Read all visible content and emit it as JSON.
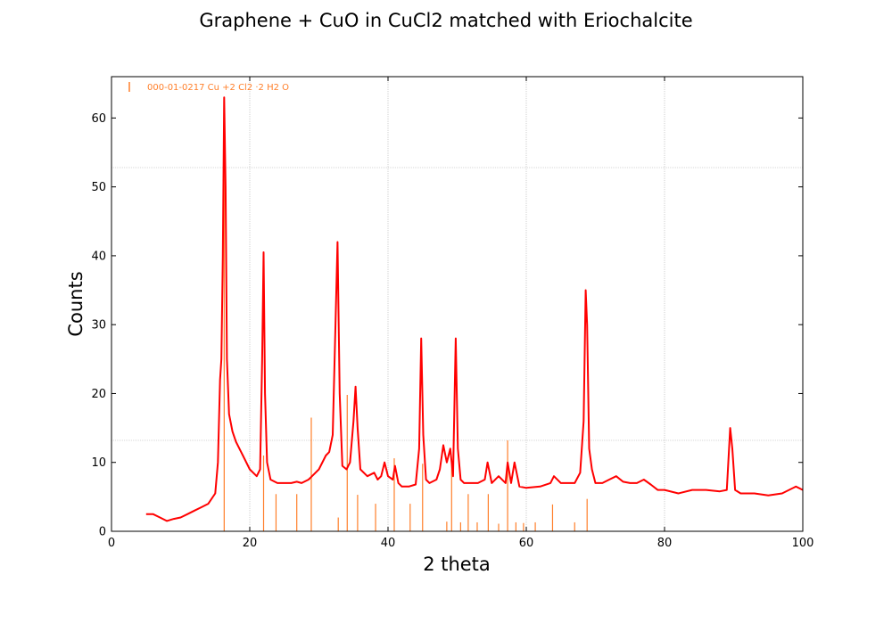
{
  "chart_data": {
    "type": "line",
    "title": "Graphene + CuO in CuCl2 matched with Eriochalcite",
    "xlabel": "2 theta",
    "ylabel": "Counts",
    "xlim": [
      0,
      100
    ],
    "ylim": [
      0,
      66
    ],
    "x_ticks": [
      0,
      20,
      40,
      60,
      80,
      100
    ],
    "y_ticks": [
      0,
      10,
      20,
      30,
      40,
      50,
      60
    ],
    "grid": true,
    "legend_position": "top-left",
    "measured_color": "#ff0000",
    "reference_color": "#ff7f2a",
    "reference_series": {
      "name": "000-01-0217 Cu +2 Cl2 ·2 H2 O",
      "x": [
        16.3,
        22.0,
        23.8,
        26.8,
        28.9,
        32.8,
        34.1,
        35.6,
        38.2,
        40.9,
        43.2,
        45.0,
        48.5,
        49.2,
        50.5,
        51.6,
        52.9,
        54.5,
        56.0,
        57.3,
        58.5,
        59.6,
        61.3,
        63.8,
        67.0,
        68.8
      ],
      "y": [
        63.0,
        11.0,
        5.4,
        5.4,
        16.5,
        2.0,
        19.8,
        5.3,
        4.0,
        10.6,
        4.0,
        9.8,
        1.4,
        9.8,
        1.3,
        5.4,
        1.3,
        5.4,
        1.1,
        13.2,
        1.3,
        1.2,
        1.3,
        3.9,
        1.3,
        4.7
      ]
    },
    "measured_series": {
      "x": [
        5.0,
        6.0,
        7.0,
        8.0,
        9.0,
        10.0,
        11.0,
        12.0,
        13.0,
        14.0,
        15.0,
        15.4,
        15.7,
        15.9,
        16.1,
        16.3,
        16.5,
        16.7,
        17.0,
        17.5,
        18.0,
        19.0,
        20.0,
        21.0,
        21.5,
        21.8,
        22.0,
        22.2,
        22.5,
        23.0,
        24.0,
        25.0,
        26.0,
        26.8,
        27.5,
        28.5,
        29.0,
        30.0,
        31.0,
        31.5,
        32.0,
        32.4,
        32.7,
        33.0,
        33.4,
        34.0,
        34.5,
        35.0,
        35.3,
        35.6,
        36.0,
        37.0,
        38.0,
        38.5,
        39.0,
        39.5,
        40.0,
        40.7,
        41.0,
        41.5,
        42.0,
        43.0,
        44.0,
        44.5,
        44.8,
        45.1,
        45.5,
        46.0,
        47.0,
        47.5,
        48.0,
        48.5,
        49.0,
        49.4,
        49.8,
        50.1,
        50.5,
        51.0,
        52.0,
        53.0,
        54.0,
        54.4,
        55.0,
        56.0,
        57.0,
        57.3,
        57.8,
        58.3,
        59.0,
        60.0,
        62.0,
        63.5,
        64.0,
        65.0,
        66.0,
        67.0,
        67.8,
        68.3,
        68.6,
        68.8,
        69.1,
        69.5,
        70.0,
        71.0,
        72.0,
        73.0,
        74.0,
        75.0,
        76.0,
        77.0,
        78.0,
        79.0,
        80.0,
        82.0,
        84.0,
        86.0,
        88.0,
        89.0,
        89.5,
        89.8,
        90.2,
        91.0,
        93.0,
        95.0,
        97.0,
        99.0,
        100.0
      ],
      "y": [
        2.5,
        2.5,
        2.0,
        1.5,
        1.8,
        2.0,
        2.5,
        3.0,
        3.5,
        4.0,
        5.5,
        10.0,
        22.0,
        25.0,
        40.0,
        63.0,
        50.0,
        25.0,
        17.0,
        14.5,
        13.0,
        11.0,
        9.0,
        8.0,
        9.0,
        25.0,
        40.5,
        20.0,
        10.0,
        7.5,
        7.0,
        7.0,
        7.0,
        7.2,
        7.0,
        7.5,
        8.0,
        9.0,
        11.0,
        11.5,
        14.0,
        30.0,
        42.0,
        20.0,
        9.5,
        9.0,
        10.0,
        16.0,
        21.0,
        15.0,
        9.0,
        8.0,
        8.5,
        7.5,
        8.0,
        10.0,
        8.0,
        7.5,
        9.5,
        7.0,
        6.5,
        6.5,
        6.8,
        12.0,
        28.0,
        14.0,
        7.5,
        7.0,
        7.5,
        9.0,
        12.5,
        10.0,
        12.0,
        8.0,
        28.0,
        12.0,
        7.5,
        7.0,
        7.0,
        7.0,
        7.5,
        10.0,
        7.0,
        8.0,
        7.0,
        10.0,
        7.0,
        10.0,
        6.5,
        6.3,
        6.5,
        7.0,
        8.0,
        7.0,
        7.0,
        7.0,
        8.5,
        16.0,
        35.0,
        30.0,
        12.0,
        9.0,
        7.0,
        7.0,
        7.5,
        8.0,
        7.2,
        7.0,
        7.0,
        7.5,
        6.8,
        6.0,
        6.0,
        5.5,
        6.0,
        6.0,
        5.8,
        6.0,
        15.0,
        12.0,
        6.0,
        5.5,
        5.5,
        5.2,
        5.5,
        6.5,
        6.0
      ]
    }
  }
}
